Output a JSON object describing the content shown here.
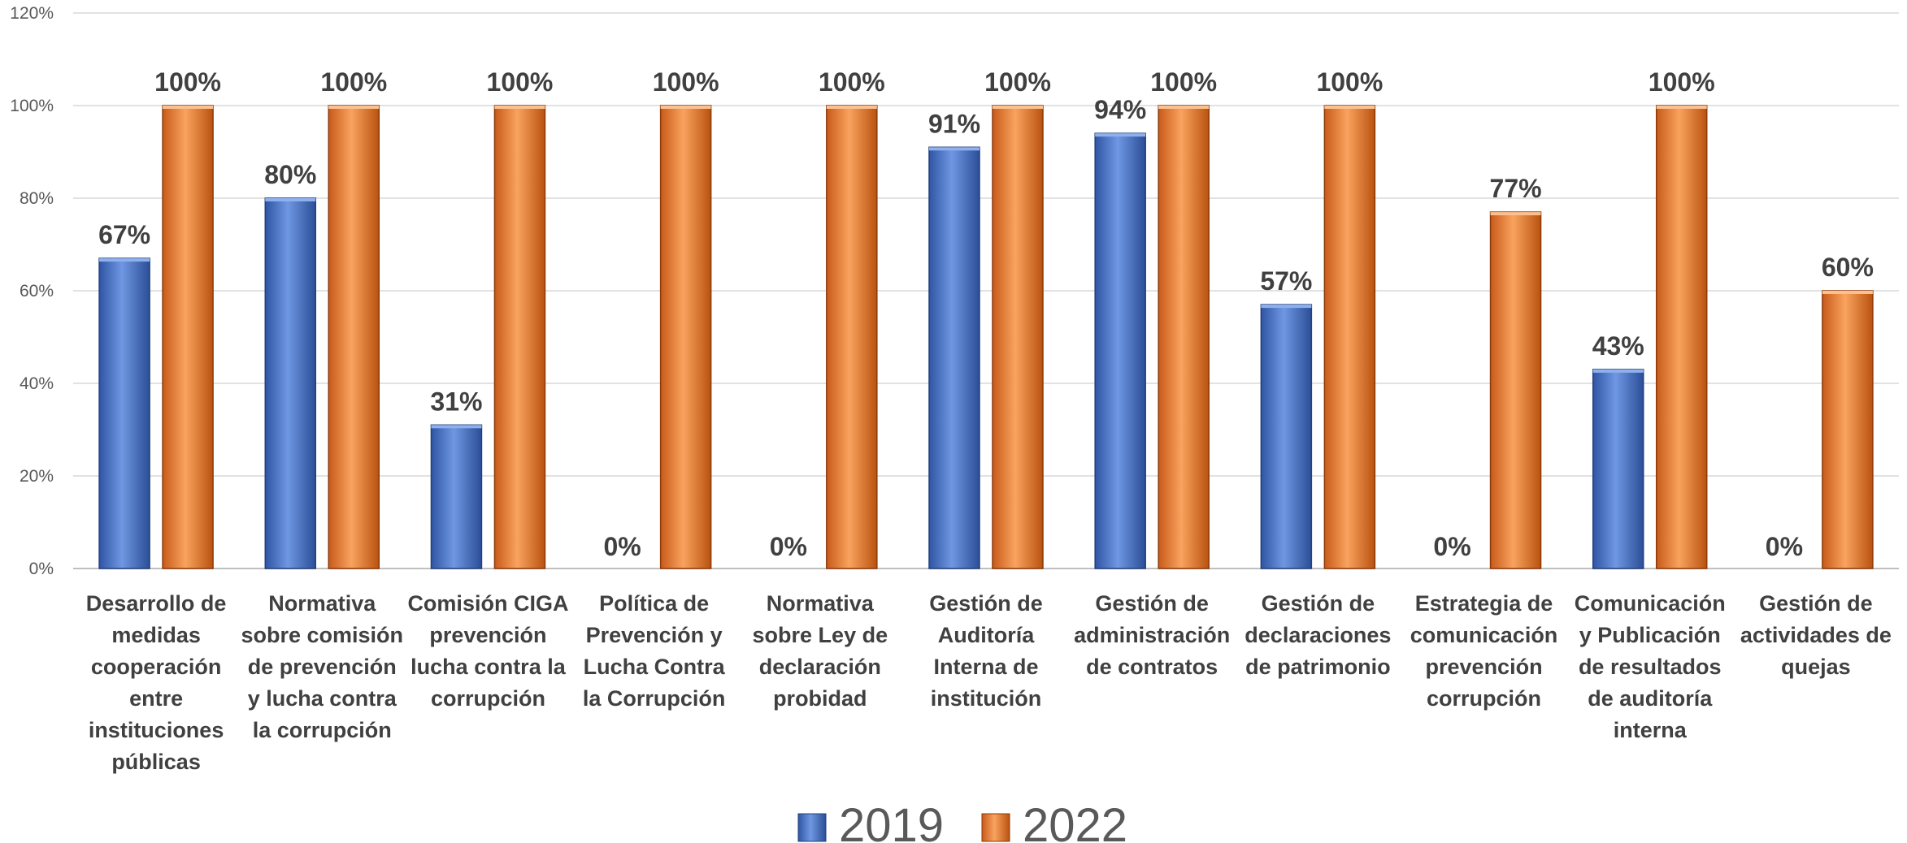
{
  "chart_data": {
    "type": "bar",
    "title": "",
    "xlabel": "",
    "ylabel": "",
    "ylim": [
      0,
      120
    ],
    "yticks": [
      0,
      20,
      40,
      60,
      80,
      100,
      120
    ],
    "ytick_labels": [
      "0%",
      "20%",
      "40%",
      "60%",
      "80%",
      "100%",
      "120%"
    ],
    "grid": true,
    "legend_position": "bottom",
    "categories": [
      [
        "Desarrollo de",
        "medidas",
        "cooperación",
        "entre",
        "instituciones",
        "públicas"
      ],
      [
        "Normativa",
        "sobre comisión",
        "de prevención",
        "y lucha contra",
        "la corrupción"
      ],
      [
        "Comisión CIGA",
        "prevención",
        "lucha contra la",
        "corrupción"
      ],
      [
        "Política de",
        "Prevención y",
        "Lucha Contra",
        "la Corrupción"
      ],
      [
        "Normativa",
        "sobre Ley de",
        "declaración",
        "probidad"
      ],
      [
        "Gestión de",
        "Auditoría",
        "Interna de",
        "institución"
      ],
      [
        "Gestión de",
        "administración",
        "de contratos"
      ],
      [
        "Gestión de",
        "declaraciones",
        "de patrimonio"
      ],
      [
        "Estrategia de",
        "comunicación",
        "prevención",
        "corrupción"
      ],
      [
        "Comunicación",
        "y Publicación",
        "de resultados",
        "de auditoría",
        "interna"
      ],
      [
        "Gestión de",
        "actividades de",
        "quejas"
      ]
    ],
    "series": [
      {
        "name": "2019",
        "color": "#4472C4",
        "values": [
          67,
          80,
          31,
          0,
          0,
          91,
          94,
          57,
          0,
          43,
          0
        ],
        "labels": [
          "67%",
          "80%",
          "31%",
          "0%",
          "0%",
          "91%",
          "94%",
          "57%",
          "0%",
          "43%",
          "0%"
        ]
      },
      {
        "name": "2022",
        "color": "#ED7D31",
        "values": [
          100,
          100,
          100,
          100,
          100,
          100,
          100,
          100,
          77,
          100,
          60
        ],
        "labels": [
          "100%",
          "100%",
          "100%",
          "100%",
          "100%",
          "100%",
          "100%",
          "100%",
          "77%",
          "100%",
          "60%"
        ]
      }
    ]
  }
}
